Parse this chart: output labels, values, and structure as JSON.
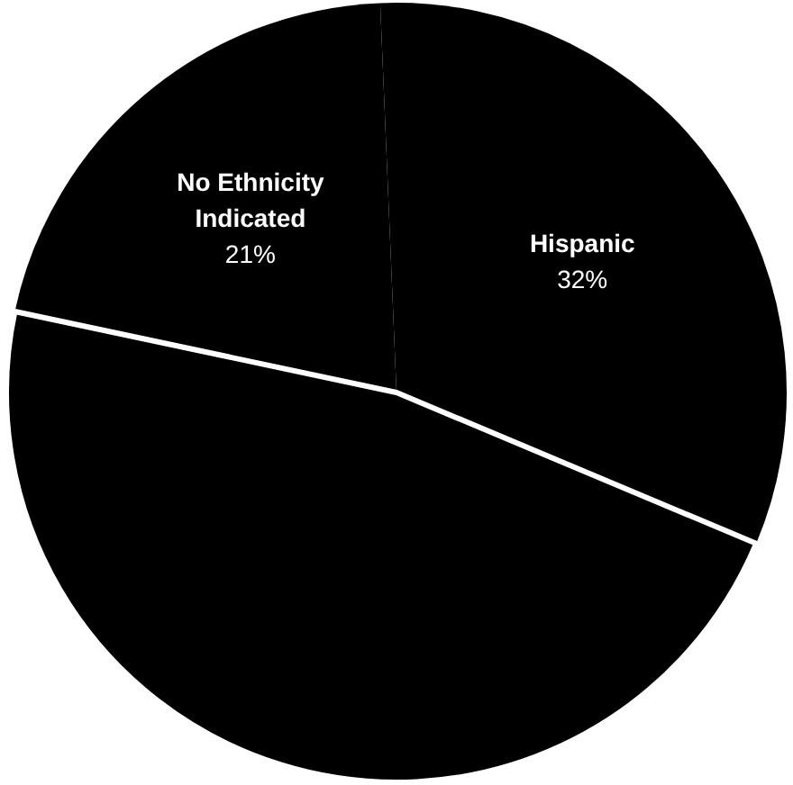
{
  "chart_data": {
    "type": "pie",
    "categories": [
      "No Ethnicity Indicated",
      "Hispanic",
      null
    ],
    "values": [
      21,
      32,
      47
    ],
    "colors": [
      "#000000",
      "#000000",
      "#000000"
    ],
    "value_labels": [
      "21%",
      "32%",
      null
    ],
    "legend": false
  }
}
